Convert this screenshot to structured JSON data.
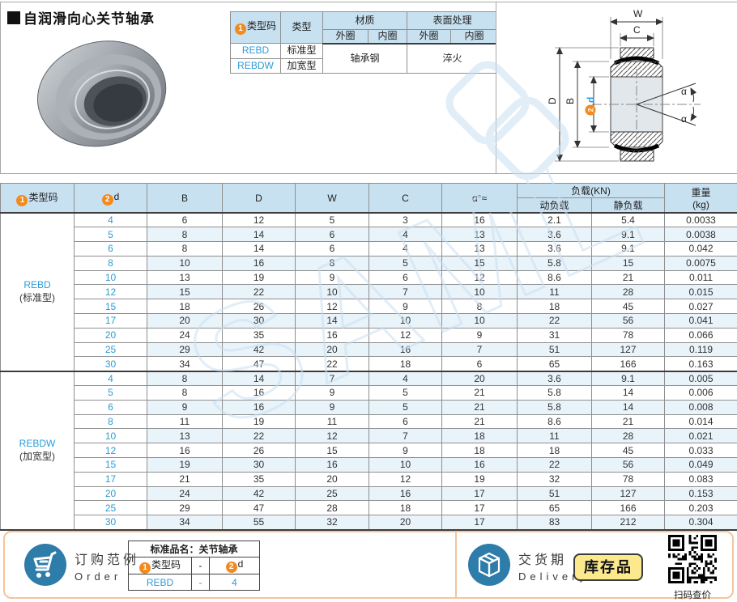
{
  "page": {
    "title": "自润滑向心关节轴承",
    "watermark": "SAML"
  },
  "colors": {
    "accent_orange": "#f28a1e",
    "link_blue": "#2b9cd8",
    "header_blue": "#c8e1f1",
    "band_blue": "#e9f3fa",
    "footer_border": "#f4c49c",
    "badge_yellow": "#fce98e",
    "icon_blue": "#2e7ca9"
  },
  "type_table": {
    "circle1": "1",
    "circle2": "2",
    "col_type_code": "类型码",
    "col_type": "类型",
    "col_material": "材质",
    "col_surface": "表面处理",
    "col_outer": "外圈",
    "col_inner": "内圈",
    "rows": [
      {
        "code": "REBD",
        "type": "标准型"
      },
      {
        "code": "REBDW",
        "type": "加宽型"
      }
    ],
    "material_value": "轴承钢",
    "surface_value": "淬火"
  },
  "diagram": {
    "labels": {
      "W": "W",
      "C": "C",
      "D": "D",
      "B": "B",
      "d": "d",
      "alpha": "α",
      "num2": "2"
    }
  },
  "main_table": {
    "headers": {
      "circle1": "1",
      "circle2": "2",
      "type_code": "类型码",
      "d": "d",
      "B": "B",
      "D": "D",
      "W": "W",
      "C": "C",
      "alpha": "α°≈",
      "load": "负载(KN)",
      "dynamic": "动负载",
      "static": "静负载",
      "weight": "重量",
      "weight_unit": "(kg)"
    },
    "sections": [
      {
        "code": "REBD",
        "name": "(标准型)",
        "rows": [
          [
            "4",
            "6",
            "12",
            "5",
            "3",
            "16",
            "2.1",
            "5.4",
            "0.0033"
          ],
          [
            "5",
            "8",
            "14",
            "6",
            "4",
            "13",
            "3.6",
            "9.1",
            "0.0038"
          ],
          [
            "6",
            "8",
            "14",
            "6",
            "4",
            "13",
            "3.6",
            "9.1",
            "0.042"
          ],
          [
            "8",
            "10",
            "16",
            "8",
            "5",
            "15",
            "5.8",
            "15",
            "0.0075"
          ],
          [
            "10",
            "13",
            "19",
            "9",
            "6",
            "12",
            "8.6",
            "21",
            "0.011"
          ],
          [
            "12",
            "15",
            "22",
            "10",
            "7",
            "10",
            "11",
            "28",
            "0.015"
          ],
          [
            "15",
            "18",
            "26",
            "12",
            "9",
            "8",
            "18",
            "45",
            "0.027"
          ],
          [
            "17",
            "20",
            "30",
            "14",
            "10",
            "10",
            "22",
            "56",
            "0.041"
          ],
          [
            "20",
            "24",
            "35",
            "16",
            "12",
            "9",
            "31",
            "78",
            "0.066"
          ],
          [
            "25",
            "29",
            "42",
            "20",
            "16",
            "7",
            "51",
            "127",
            "0.119"
          ],
          [
            "30",
            "34",
            "47",
            "22",
            "18",
            "6",
            "65",
            "166",
            "0.163"
          ]
        ]
      },
      {
        "code": "REBDW",
        "name": "(加宽型)",
        "rows": [
          [
            "4",
            "8",
            "14",
            "7",
            "4",
            "20",
            "3.6",
            "9.1",
            "0.005"
          ],
          [
            "5",
            "8",
            "16",
            "9",
            "5",
            "21",
            "5.8",
            "14",
            "0.006"
          ],
          [
            "6",
            "9",
            "16",
            "9",
            "5",
            "21",
            "5.8",
            "14",
            "0.008"
          ],
          [
            "8",
            "11",
            "19",
            "11",
            "6",
            "21",
            "8.6",
            "21",
            "0.014"
          ],
          [
            "10",
            "13",
            "22",
            "12",
            "7",
            "18",
            "11",
            "28",
            "0.021"
          ],
          [
            "12",
            "16",
            "26",
            "15",
            "9",
            "18",
            "18",
            "45",
            "0.033"
          ],
          [
            "15",
            "19",
            "30",
            "16",
            "10",
            "16",
            "22",
            "56",
            "0.049"
          ],
          [
            "17",
            "21",
            "35",
            "20",
            "12",
            "19",
            "32",
            "78",
            "0.083"
          ],
          [
            "20",
            "24",
            "42",
            "25",
            "16",
            "17",
            "51",
            "127",
            "0.153"
          ],
          [
            "25",
            "29",
            "47",
            "28",
            "18",
            "17",
            "65",
            "166",
            "0.203"
          ],
          [
            "30",
            "34",
            "55",
            "32",
            "20",
            "17",
            "83",
            "212",
            "0.304"
          ]
        ]
      }
    ]
  },
  "footer": {
    "order": {
      "title_cn": "订购范例",
      "title_en": "Order",
      "table_title": "标准品名：关节轴承",
      "circle1": "1",
      "circle2": "2",
      "col_code": "类型码",
      "col_sep": "-",
      "col_d": "d",
      "val_code": "REBD",
      "val_sep": "-",
      "val_d": "4"
    },
    "delivery": {
      "title_cn": "交货期",
      "title_en": "Delivery",
      "badge": "库存品",
      "qr_caption": "扫码查价"
    }
  }
}
